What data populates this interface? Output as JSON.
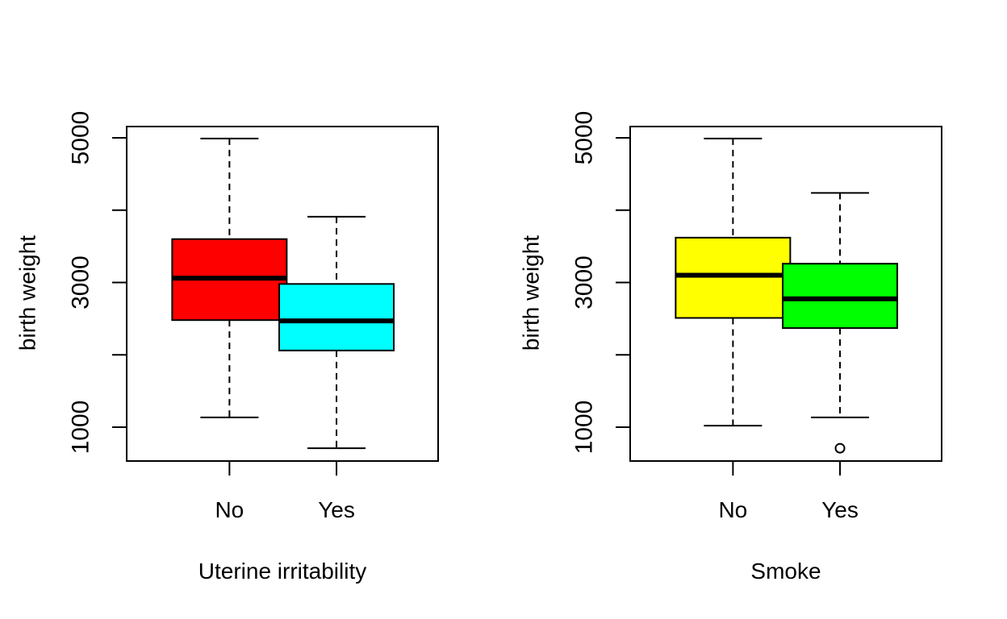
{
  "chart_data": [
    {
      "type": "box",
      "xlabel": "Uterine irritability",
      "ylabel": "birth weight",
      "yticks": [
        1000,
        3000,
        5000
      ],
      "yminor_ticks": [
        2000,
        4000
      ],
      "ylim": [
        550,
        5150
      ],
      "categories": [
        "No",
        "Yes"
      ],
      "boxes": [
        {
          "category": "No",
          "fill": "#ff0000",
          "whisker_low": 1135,
          "q1": 2480,
          "median": 3060,
          "q3": 3600,
          "whisker_high": 4990,
          "outliers": []
        },
        {
          "category": "Yes",
          "fill": "#00ffff",
          "whisker_low": 709,
          "q1": 2060,
          "median": 2470,
          "q3": 2980,
          "whisker_high": 3910,
          "outliers": []
        }
      ]
    },
    {
      "type": "box",
      "xlabel": "Smoke",
      "ylabel": "birth weight",
      "yticks": [
        1000,
        3000,
        5000
      ],
      "yminor_ticks": [
        2000,
        4000
      ],
      "ylim": [
        550,
        5150
      ],
      "categories": [
        "No",
        "Yes"
      ],
      "boxes": [
        {
          "category": "No",
          "fill": "#ffff00",
          "whisker_low": 1021,
          "q1": 2510,
          "median": 3100,
          "q3": 3620,
          "whisker_high": 4990,
          "outliers": []
        },
        {
          "category": "Yes",
          "fill": "#00ff00",
          "whisker_low": 1135,
          "q1": 2370,
          "median": 2775,
          "q3": 3260,
          "whisker_high": 4238,
          "outliers": [
            709
          ]
        }
      ]
    }
  ]
}
